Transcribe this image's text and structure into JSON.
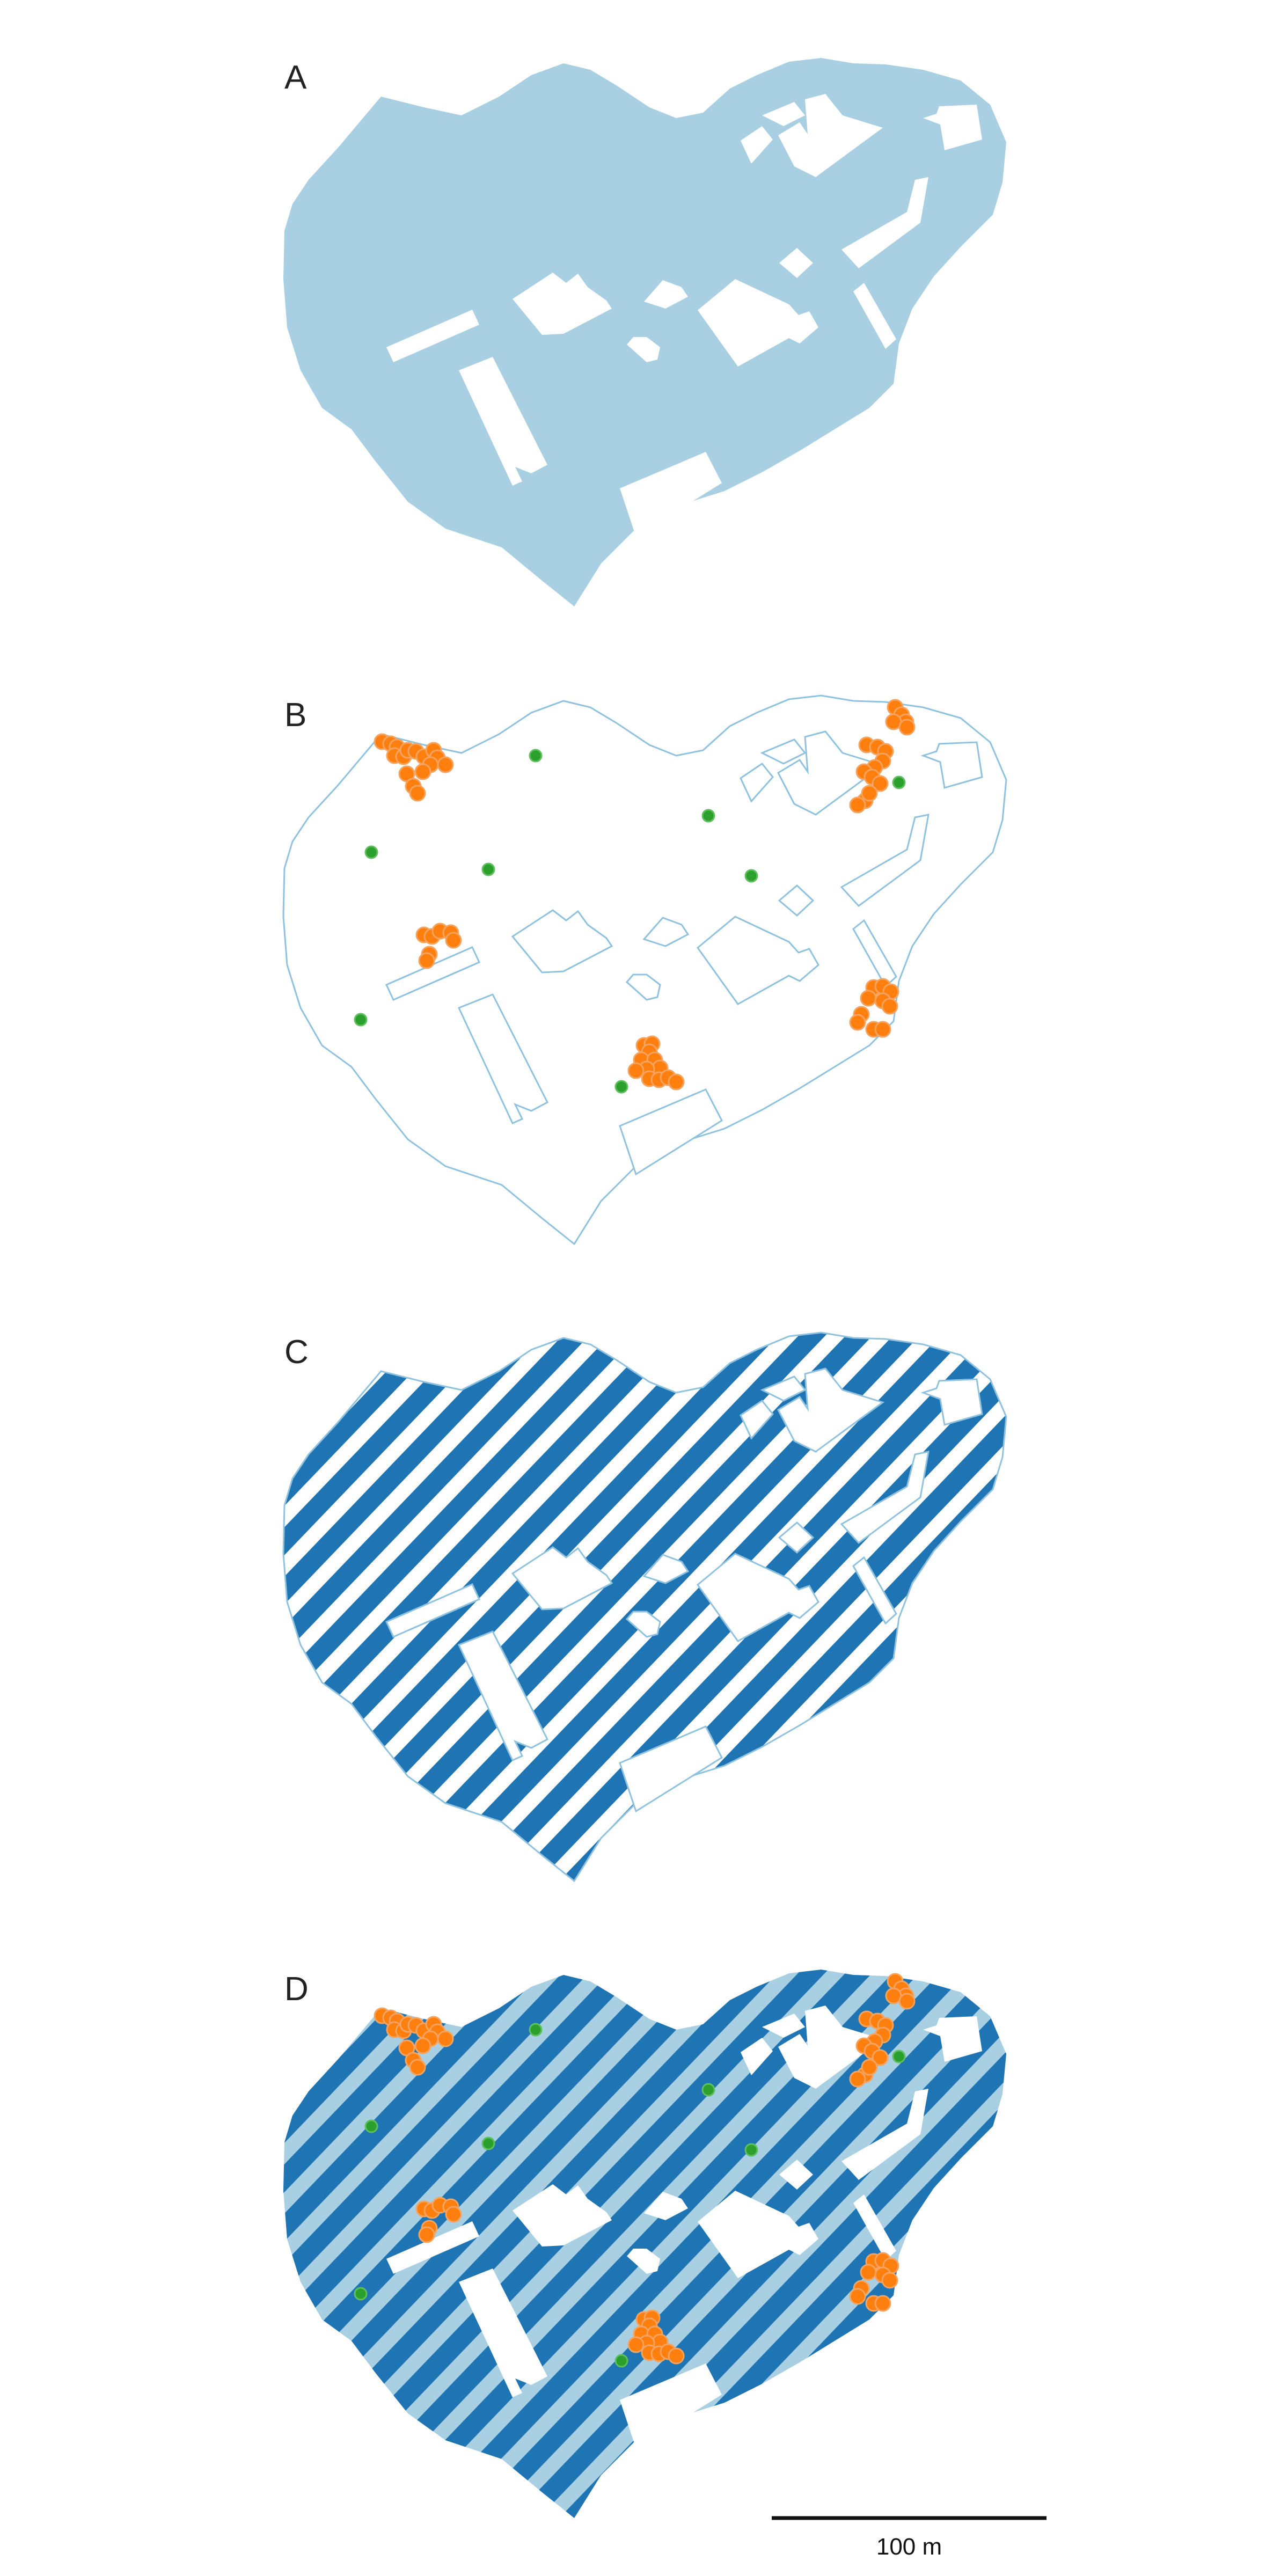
{
  "panels": [
    {
      "label": "A"
    },
    {
      "label": "B"
    },
    {
      "label": "C"
    },
    {
      "label": "D"
    }
  ],
  "legend_colors": {
    "area_fill": "#a8cfe2",
    "outline": "#8fc2de",
    "stripe": "#1f74b4",
    "point_orange": "#ff7f0e",
    "point_orange_edge": "#f4a460",
    "point_green": "#2ca02c"
  },
  "scale_bar": {
    "label": "100 m"
  }
}
